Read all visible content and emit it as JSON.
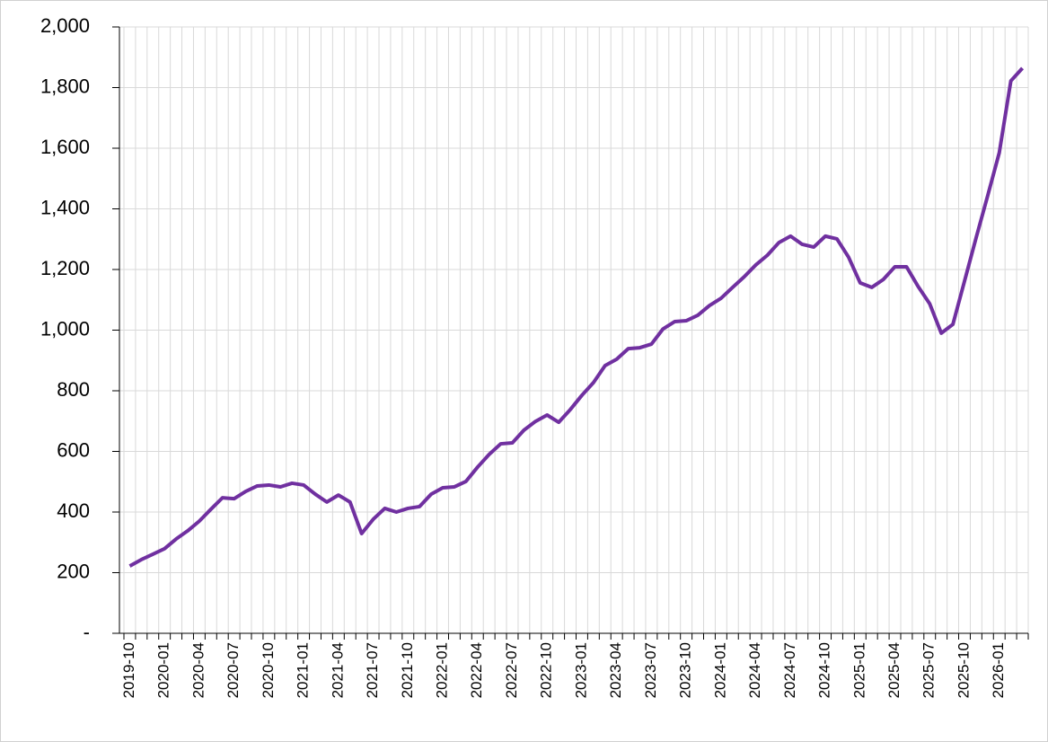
{
  "chart_data": {
    "type": "line",
    "categories": [
      "2019-10",
      null,
      null,
      "2020-01",
      null,
      null,
      "2020-04",
      null,
      null,
      "2020-07",
      null,
      null,
      "2020-10",
      null,
      null,
      "2021-01",
      null,
      null,
      "2021-04",
      null,
      null,
      "2021-07",
      null,
      null,
      "2021-10",
      null,
      null,
      "2022-01",
      null,
      null,
      "2022-04",
      null,
      null,
      "2022-07",
      null,
      null,
      "2022-10",
      null,
      null,
      "2023-01",
      null,
      null,
      "2023-04",
      null,
      null,
      "2023-07",
      null,
      null,
      "2023-10",
      null,
      null,
      "2024-01",
      null,
      null,
      "2024-04",
      null,
      null,
      "2024-07",
      null,
      null,
      "2024-10",
      null,
      null,
      "2025-01",
      null,
      null,
      "2025-04",
      null,
      null,
      "2025-07",
      null,
      null,
      "2025-10",
      null,
      null,
      "2026-01",
      null,
      null
    ],
    "values": [
      222,
      243,
      261,
      279,
      311,
      338,
      370,
      409,
      447,
      444,
      468,
      486,
      489,
      483,
      495,
      489,
      459,
      433,
      456,
      433,
      329,
      376,
      412,
      400,
      412,
      418,
      459,
      480,
      483,
      501,
      548,
      590,
      625,
      628,
      670,
      699,
      720,
      696,
      738,
      785,
      827,
      883,
      904,
      939,
      942,
      954,
      1004,
      1028,
      1031,
      1049,
      1081,
      1105,
      1141,
      1176,
      1215,
      1247,
      1289,
      1310,
      1283,
      1274,
      1310,
      1301,
      1241,
      1156,
      1141,
      1167,
      1209,
      1209,
      1144,
      1087,
      990,
      1019,
      1161,
      1304,
      1443,
      1585,
      1822,
      1864
    ],
    "color": "#7030a0",
    "ylim": [
      0,
      2000
    ],
    "yticks": [
      {
        "value": 0,
        "label": "-"
      },
      200,
      400,
      600,
      800,
      {
        "value": 1000,
        "label": "1,000"
      },
      {
        "value": 1200,
        "label": "1,200"
      },
      {
        "value": 1400,
        "label": "1,400"
      },
      {
        "value": 1600,
        "label": "1,600"
      },
      {
        "value": 1800,
        "label": "1,800"
      },
      {
        "value": 2000,
        "label": "2,000"
      }
    ],
    "grid": true
  }
}
